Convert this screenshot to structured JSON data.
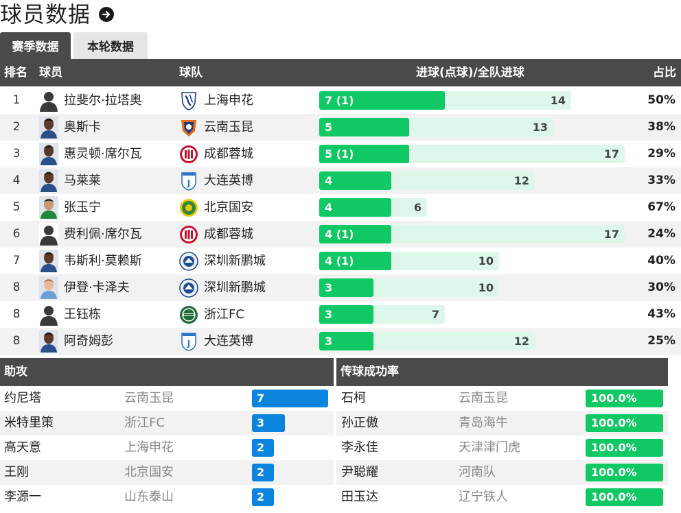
{
  "title": "球员数据",
  "tabs": [
    {
      "label": "赛季数据",
      "active": true
    },
    {
      "label": "本轮数据",
      "active": false
    }
  ],
  "goals_table": {
    "headers": {
      "rank": "排名",
      "player": "球员",
      "team": "球队",
      "goals": "进球(点球)/全队进球",
      "pct": "占比"
    },
    "rows": [
      {
        "rank": "1",
        "player": "拉斐尔·拉塔奥",
        "avatar": "silhouette",
        "team": "上海申花",
        "team_icon": "shenhua-logo",
        "goals_label": "7 (1)",
        "goals": 7,
        "team_goals": 14,
        "pct": "50%"
      },
      {
        "rank": "2",
        "player": "奥斯卡",
        "avatar": "photo-dark",
        "team": "云南玉昆",
        "team_icon": "yunnan-logo",
        "goals_label": "5",
        "goals": 5,
        "team_goals": 13,
        "pct": "38%"
      },
      {
        "rank": "3",
        "player": "惠灵顿·席尔瓦",
        "avatar": "photo-dark",
        "team": "成都蓉城",
        "team_icon": "chengdu-logo",
        "goals_label": "5 (1)",
        "goals": 5,
        "team_goals": 17,
        "pct": "29%"
      },
      {
        "rank": "4",
        "player": "马莱莱",
        "avatar": "photo-dark",
        "team": "大连英博",
        "team_icon": "dalian-logo",
        "goals_label": "4",
        "goals": 4,
        "team_goals": 12,
        "pct": "33%"
      },
      {
        "rank": "5",
        "player": "张玉宁",
        "avatar": "photo-green",
        "team": "北京国安",
        "team_icon": "guoan-logo",
        "goals_label": "4",
        "goals": 4,
        "team_goals": 6,
        "pct": "67%"
      },
      {
        "rank": "6",
        "player": "费利佩·席尔瓦",
        "avatar": "silhouette",
        "team": "成都蓉城",
        "team_icon": "chengdu-logo",
        "goals_label": "4 (1)",
        "goals": 4,
        "team_goals": 17,
        "pct": "24%"
      },
      {
        "rank": "7",
        "player": "韦斯利·莫赖斯",
        "avatar": "photo-dark",
        "team": "深圳新鹏城",
        "team_icon": "shenzhen-logo",
        "goals_label": "4 (1)",
        "goals": 4,
        "team_goals": 10,
        "pct": "40%"
      },
      {
        "rank": "8",
        "player": "伊登·卡泽夫",
        "avatar": "photo-light",
        "team": "深圳新鹏城",
        "team_icon": "shenzhen-logo",
        "goals_label": "3",
        "goals": 3,
        "team_goals": 10,
        "pct": "30%"
      },
      {
        "rank": "8",
        "player": "王钰栋",
        "avatar": "silhouette",
        "team": "浙江FC",
        "team_icon": "zhejiang-logo",
        "goals_label": "3",
        "goals": 3,
        "team_goals": 7,
        "pct": "43%"
      },
      {
        "rank": "8",
        "player": "阿奇姆彭",
        "avatar": "photo-dark",
        "team": "大连英博",
        "team_icon": "dalian-logo",
        "goals_label": "3",
        "goals": 3,
        "team_goals": 12,
        "pct": "25%"
      }
    ]
  },
  "assists": {
    "title": "助攻",
    "rows": [
      {
        "player": "约尼塔",
        "team": "云南玉昆",
        "value": 7
      },
      {
        "player": "米特里策",
        "team": "浙江FC",
        "value": 3
      },
      {
        "player": "高天意",
        "team": "上海申花",
        "value": 2
      },
      {
        "player": "王刚",
        "team": "北京国安",
        "value": 2
      },
      {
        "player": "李源一",
        "team": "山东泰山",
        "value": 2
      }
    ]
  },
  "pass_success": {
    "title": "传球成功率",
    "rows": [
      {
        "player": "石柯",
        "team": "云南玉昆",
        "value": "100.0%"
      },
      {
        "player": "孙正傲",
        "team": "青岛海牛",
        "value": "100.0%"
      },
      {
        "player": "李永佳",
        "team": "天津津门虎",
        "value": "100.0%"
      },
      {
        "player": "尹聪耀",
        "team": "河南队",
        "value": "100.0%"
      },
      {
        "player": "田玉达",
        "team": "辽宁铁人",
        "value": "100.0%"
      }
    ]
  },
  "colors": {
    "header_bg": "#4a4a4a",
    "goal_bar": "#10c864",
    "team_bar": "#ddf8ea",
    "assist_bar": "#0a84dc",
    "pass_bar": "#10c864"
  }
}
